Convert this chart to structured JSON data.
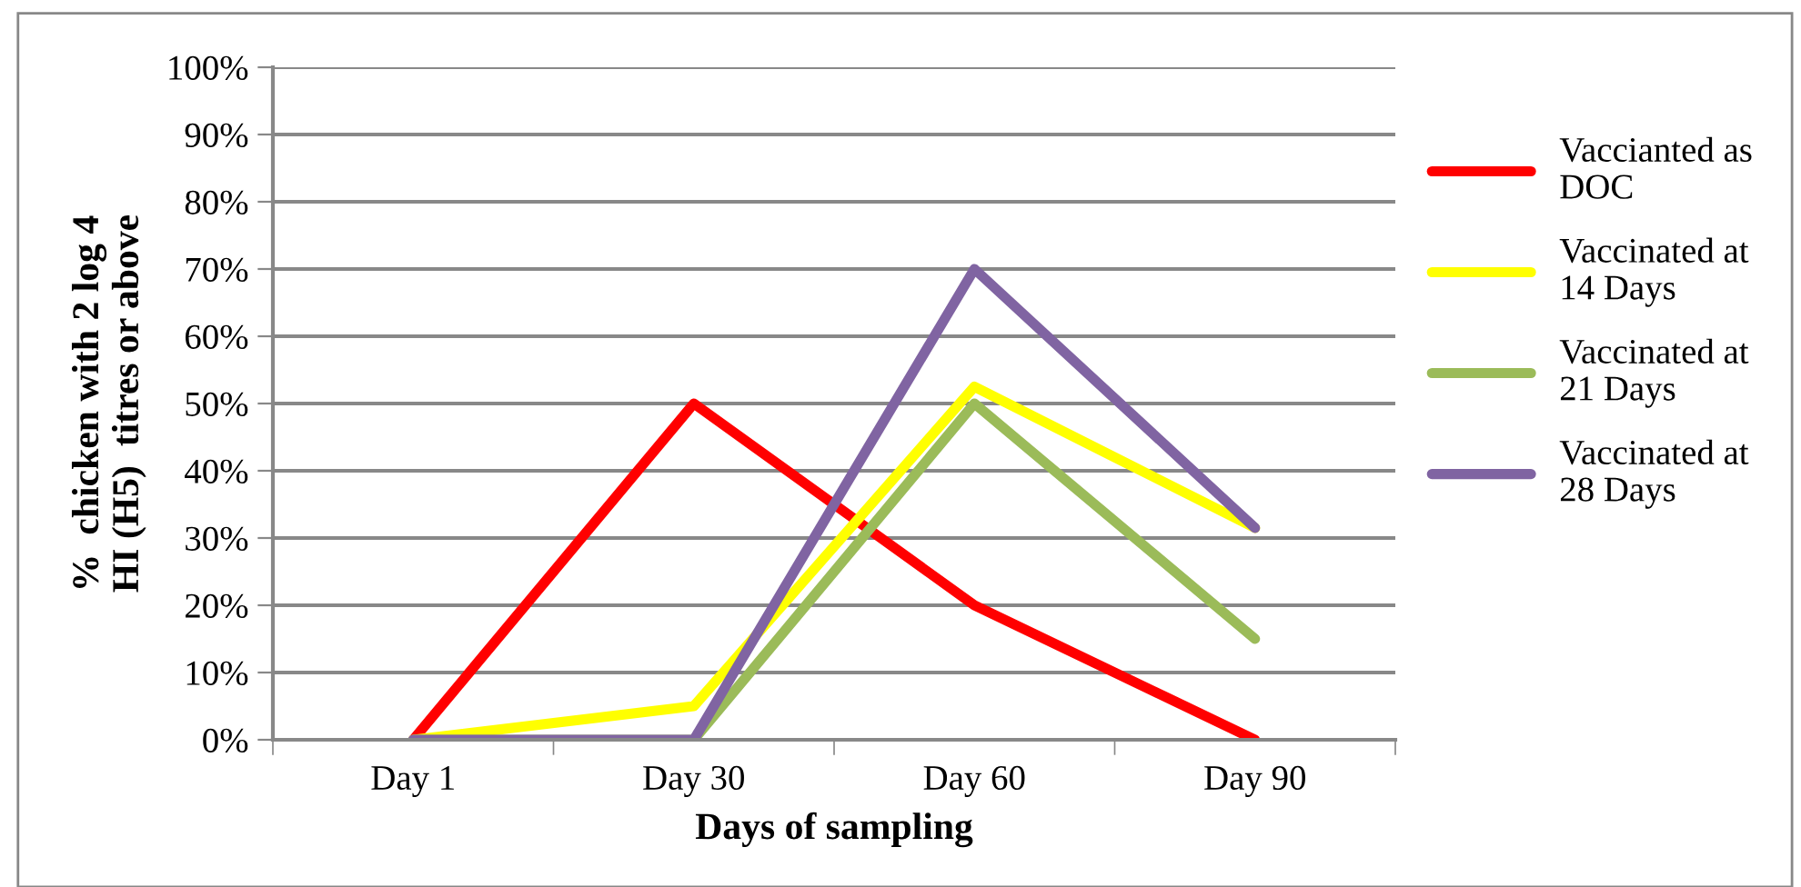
{
  "chart_data": {
    "type": "line",
    "xlabel": "Days of sampling",
    "ylabel": "%  chicken with 2 log 4\nHI (H5)  titres or above",
    "categories": [
      "Day 1",
      "Day 30",
      "Day 60",
      "Day 90"
    ],
    "series": [
      {
        "name": "Vaccianted as\nDOC",
        "color": "#ff0000",
        "values": [
          0,
          50,
          20,
          0
        ]
      },
      {
        "name": "Vaccinated at\n14 Days",
        "color": "#ffff00",
        "values": [
          0,
          5,
          52.5,
          31.5
        ]
      },
      {
        "name": "Vaccinated at\n21 Days",
        "color": "#9bbb59",
        "values": [
          0,
          0,
          50,
          15
        ]
      },
      {
        "name": "Vaccinated at\n28 Days",
        "color": "#8064a2",
        "values": [
          0,
          0,
          70,
          31.5
        ]
      }
    ],
    "ylim": [
      0,
      100
    ],
    "yticks": [
      {
        "value": 0,
        "label": "0%"
      },
      {
        "value": 10,
        "label": "10%"
      },
      {
        "value": 20,
        "label": "20%"
      },
      {
        "value": 30,
        "label": "30%"
      },
      {
        "value": 40,
        "label": "40%"
      },
      {
        "value": 50,
        "label": "50%"
      },
      {
        "value": 60,
        "label": "60%"
      },
      {
        "value": 70,
        "label": "70%"
      },
      {
        "value": 80,
        "label": "80%"
      },
      {
        "value": 90,
        "label": "90%"
      },
      {
        "value": 100,
        "label": "100%"
      }
    ],
    "grid": "y",
    "legend": "right",
    "marker": "none",
    "line_style": "solid"
  }
}
